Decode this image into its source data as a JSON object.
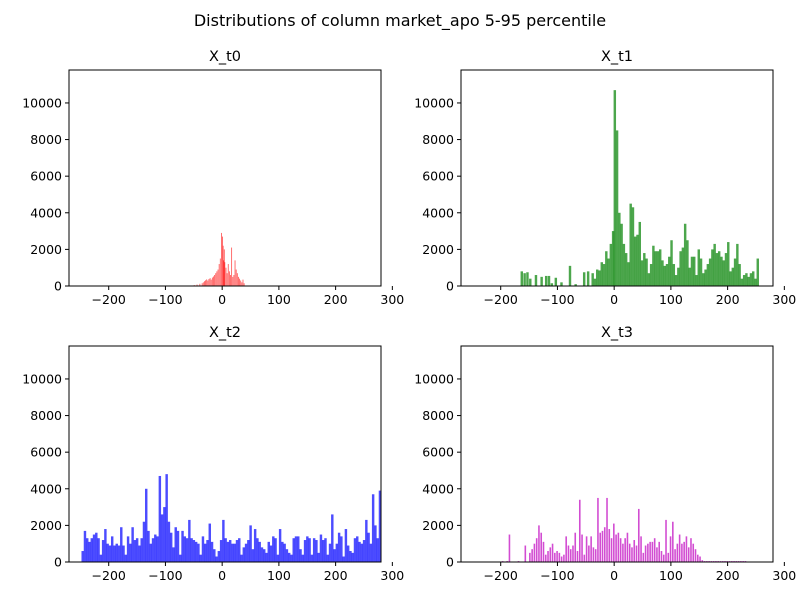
{
  "chart_data": {
    "type": "histogram",
    "title": "Distributions of column market_apo 5-95 percentile",
    "xlim": [
      -270,
      280
    ],
    "ylim": [
      0,
      11800
    ],
    "xticks": [
      -200,
      -100,
      0,
      100,
      200,
      300
    ],
    "yticks": [
      0,
      2000,
      4000,
      6000,
      8000,
      10000
    ],
    "xtick_labels": [
      "−200",
      "−100",
      "0",
      "100",
      "200",
      "300"
    ],
    "ytick_labels": [
      "0",
      "2000",
      "4000",
      "6000",
      "8000",
      "10000"
    ],
    "panels": [
      {
        "title": "X_t0",
        "color": "#ff0000",
        "bin_width": 1.1,
        "x": [
          -50,
          -45,
          -40,
          -36,
          -34,
          -32,
          -30,
          -28,
          -26,
          -24,
          -22,
          -20,
          -18,
          -16,
          -14,
          -12,
          -10,
          -8,
          -6,
          -4,
          -2,
          0,
          1,
          2,
          3,
          4,
          6,
          8,
          10,
          12,
          14,
          16,
          18,
          20,
          22,
          24,
          26,
          28,
          30,
          32,
          34,
          36,
          38
        ],
        "values": [
          50,
          80,
          120,
          150,
          200,
          260,
          310,
          360,
          300,
          380,
          430,
          350,
          460,
          520,
          600,
          700,
          800,
          900,
          1200,
          1500,
          2900,
          2700,
          2200,
          1400,
          2000,
          1300,
          1000,
          700,
          1200,
          800,
          600,
          2100,
          500,
          600,
          1400,
          900,
          700,
          500,
          400,
          300,
          200,
          350,
          150
        ]
      },
      {
        "title": "X_t1",
        "color": "#008000",
        "bin_width": 4.3,
        "x": [
          -165,
          -160,
          -155,
          -150,
          -140,
          -130,
          -122,
          -117,
          -112,
          -105,
          -95,
          -80,
          -70,
          -55,
          -48,
          -40,
          -36,
          -32,
          -28,
          -24,
          -20,
          -16,
          -12,
          -8,
          -4,
          -1,
          3,
          7,
          11,
          15,
          19,
          23,
          27,
          31,
          35,
          39,
          43,
          47,
          51,
          55,
          59,
          63,
          67,
          71,
          75,
          79,
          83,
          87,
          91,
          95,
          99,
          103,
          107,
          111,
          115,
          119,
          123,
          127,
          131,
          135,
          139,
          143,
          147,
          151,
          155,
          159,
          163,
          167,
          171,
          175,
          179,
          183,
          187,
          191,
          195,
          199,
          203,
          207,
          211,
          215,
          219,
          223,
          227,
          231,
          235,
          239,
          243,
          247,
          251
        ],
        "values": [
          800,
          700,
          750,
          400,
          600,
          500,
          550,
          550,
          150,
          450,
          200,
          1100,
          100,
          750,
          800,
          700,
          400,
          900,
          850,
          1300,
          1200,
          1900,
          1500,
          2300,
          3000,
          10700,
          8500,
          4000,
          3400,
          2300,
          1800,
          1300,
          4500,
          4300,
          2700,
          2800,
          3500,
          1400,
          1800,
          1500,
          700,
          1200,
          2200,
          1900,
          1900,
          2000,
          1400,
          1100,
          1200,
          1600,
          2500,
          1200,
          600,
          1000,
          1900,
          2100,
          3400,
          2500,
          1000,
          1600,
          1600,
          600,
          2000,
          1500,
          700,
          900,
          1200,
          1500,
          2000,
          2300,
          1800,
          1900,
          1600,
          1400,
          1800,
          2400,
          800,
          1000,
          1500,
          2300,
          1200,
          400,
          600,
          700,
          500,
          700,
          800,
          400,
          1500
        ]
      },
      {
        "title": "X_t2",
        "color": "#0000ff",
        "bin_width": 4.3,
        "x": [
          -248,
          -244,
          -240,
          -236,
          -232,
          -228,
          -224,
          -220,
          -216,
          -212,
          -208,
          -204,
          -200,
          -196,
          -192,
          -188,
          -184,
          -180,
          -176,
          -172,
          -168,
          -164,
          -160,
          -156,
          -152,
          -148,
          -144,
          -140,
          -136,
          -132,
          -128,
          -124,
          -120,
          -116,
          -112,
          -108,
          -104,
          -100,
          -96,
          -92,
          -88,
          -84,
          -80,
          -76,
          -72,
          -68,
          -64,
          -60,
          -56,
          -52,
          -48,
          -44,
          -40,
          -36,
          -32,
          -28,
          -24,
          -20,
          -16,
          -12,
          -8,
          -4,
          0,
          4,
          8,
          12,
          16,
          20,
          24,
          28,
          32,
          36,
          40,
          44,
          48,
          52,
          56,
          60,
          64,
          68,
          72,
          76,
          80,
          84,
          88,
          92,
          96,
          100,
          104,
          108,
          112,
          116,
          120,
          124,
          128,
          132,
          136,
          140,
          144,
          148,
          152,
          156,
          160,
          164,
          168,
          172,
          176,
          180,
          184,
          188,
          192,
          196,
          200,
          204,
          208,
          212,
          216,
          220,
          224,
          228,
          232,
          236,
          240,
          244,
          248,
          252,
          256,
          260,
          264,
          268,
          272,
          276
        ],
        "values": [
          600,
          1700,
          1300,
          1100,
          1300,
          1500,
          1600,
          1300,
          400,
          1200,
          1800,
          1000,
          900,
          1400,
          900,
          1000,
          900,
          1900,
          900,
          400,
          1400,
          1000,
          1900,
          1200,
          1300,
          900,
          1300,
          2200,
          4000,
          1700,
          1000,
          1300,
          1500,
          1400,
          4700,
          2600,
          3000,
          4800,
          2200,
          1600,
          800,
          1900,
          1700,
          400,
          1700,
          1400,
          1300,
          2300,
          1300,
          1200,
          1100,
          1000,
          400,
          1400,
          1000,
          1200,
          2100,
          1100,
          700,
          300,
          600,
          1200,
          2300,
          1300,
          1100,
          1200,
          1000,
          1000,
          1200,
          1300,
          400,
          800,
          1000,
          1200,
          2000,
          700,
          1800,
          1300,
          1100,
          800,
          700,
          500,
          1100,
          900,
          1400,
          1300,
          400,
          1800,
          1100,
          1000,
          700,
          500,
          400,
          1300,
          1400,
          1400,
          700,
          400,
          1200,
          1400,
          1300,
          400,
          1300,
          1200,
          500,
          1500,
          1200,
          1300,
          400,
          1000,
          2600,
          700,
          1000,
          1600,
          1400,
          300,
          1800,
          900,
          600,
          500,
          1300,
          1400,
          1100,
          1000,
          1200,
          2300,
          1600,
          1000,
          3700,
          2000,
          1300,
          3900
        ]
      },
      {
        "title": "X_t3",
        "color": "#bf00bf",
        "bin_width": 2.8,
        "x": [
          -198,
          -190,
          -186,
          -170,
          -158,
          -150,
          -146,
          -142,
          -138,
          -134,
          -130,
          -126,
          -122,
          -118,
          -114,
          -110,
          -106,
          -102,
          -98,
          -94,
          -90,
          -86,
          -82,
          -78,
          -74,
          -70,
          -66,
          -62,
          -58,
          -54,
          -50,
          -46,
          -42,
          -38,
          -34,
          -30,
          -26,
          -22,
          -18,
          -14,
          -10,
          -6,
          -2,
          2,
          6,
          10,
          14,
          18,
          22,
          26,
          30,
          34,
          38,
          42,
          46,
          50,
          54,
          58,
          62,
          66,
          70,
          74,
          78,
          82,
          86,
          90,
          94,
          98,
          102,
          106,
          110,
          114,
          118,
          122,
          126,
          130,
          134,
          138,
          142,
          146,
          150,
          154,
          158,
          162,
          166,
          170,
          174,
          178,
          182,
          186,
          190,
          194,
          198,
          202,
          206,
          210,
          214,
          218,
          222,
          226,
          230
        ],
        "values": [
          50,
          50,
          1500,
          50,
          900,
          500,
          700,
          1000,
          1300,
          2000,
          1600,
          1100,
          400,
          600,
          800,
          1000,
          500,
          600,
          500,
          300,
          400,
          1400,
          900,
          700,
          900,
          1600,
          600,
          3400,
          1500,
          400,
          1400,
          900,
          1400,
          800,
          700,
          3500,
          1600,
          1700,
          1900,
          3500,
          1800,
          1300,
          2100,
          1500,
          1600,
          1300,
          1000,
          1300,
          1600,
          1000,
          800,
          1200,
          900,
          2900,
          1400,
          500,
          900,
          1000,
          1100,
          1100,
          1300,
          800,
          1100,
          600,
          400,
          2300,
          500,
          1400,
          2200,
          700,
          1000,
          1500,
          1000,
          1100,
          1400,
          800,
          1300,
          1000,
          700,
          400,
          300,
          100,
          50,
          50,
          50,
          50,
          50,
          50,
          50,
          50,
          50,
          50,
          50,
          50,
          50,
          50,
          50,
          50,
          50,
          50,
          50
        ]
      }
    ]
  }
}
